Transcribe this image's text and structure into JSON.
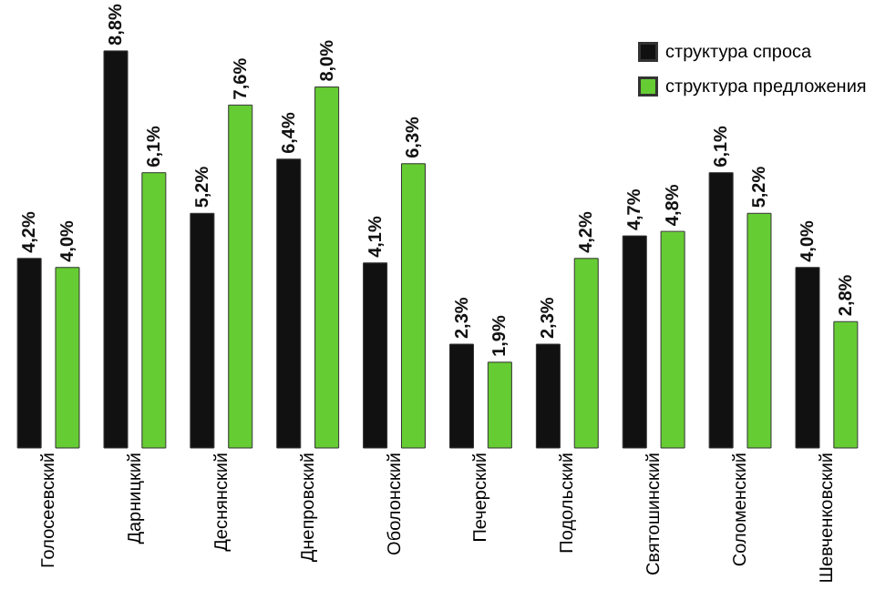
{
  "chart_data": {
    "type": "bar",
    "categories": [
      "Голосеевский",
      "Дарницкий",
      "Деснянский",
      "Днепровский",
      "Оболонский",
      "Печерский",
      "Подольский",
      "Святошинский",
      "Соломенский",
      "Шевченковский"
    ],
    "series": [
      {
        "name": "структура спроса",
        "color": "#111111",
        "values": [
          4.2,
          8.8,
          5.2,
          6.4,
          4.1,
          2.3,
          2.3,
          4.7,
          6.1,
          4.0
        ],
        "value_labels": [
          "4,2%",
          "8,8%",
          "5,2%",
          "6,4%",
          "4,1%",
          "2,3%",
          "2,3%",
          "4,7%",
          "6,1%",
          "4,0%"
        ]
      },
      {
        "name": "структура предложения",
        "color": "#66cc33",
        "values": [
          4.0,
          6.1,
          7.6,
          8.0,
          6.3,
          1.9,
          4.2,
          4.8,
          5.2,
          2.8
        ],
        "value_labels": [
          "4,0%",
          "6,1%",
          "7,6%",
          "8,0%",
          "6,3%",
          "1,9%",
          "4,2%",
          "4,8%",
          "5,2%",
          "2,8%"
        ]
      }
    ],
    "tick_labels": "x",
    "grid": false,
    "legend": "top right"
  }
}
